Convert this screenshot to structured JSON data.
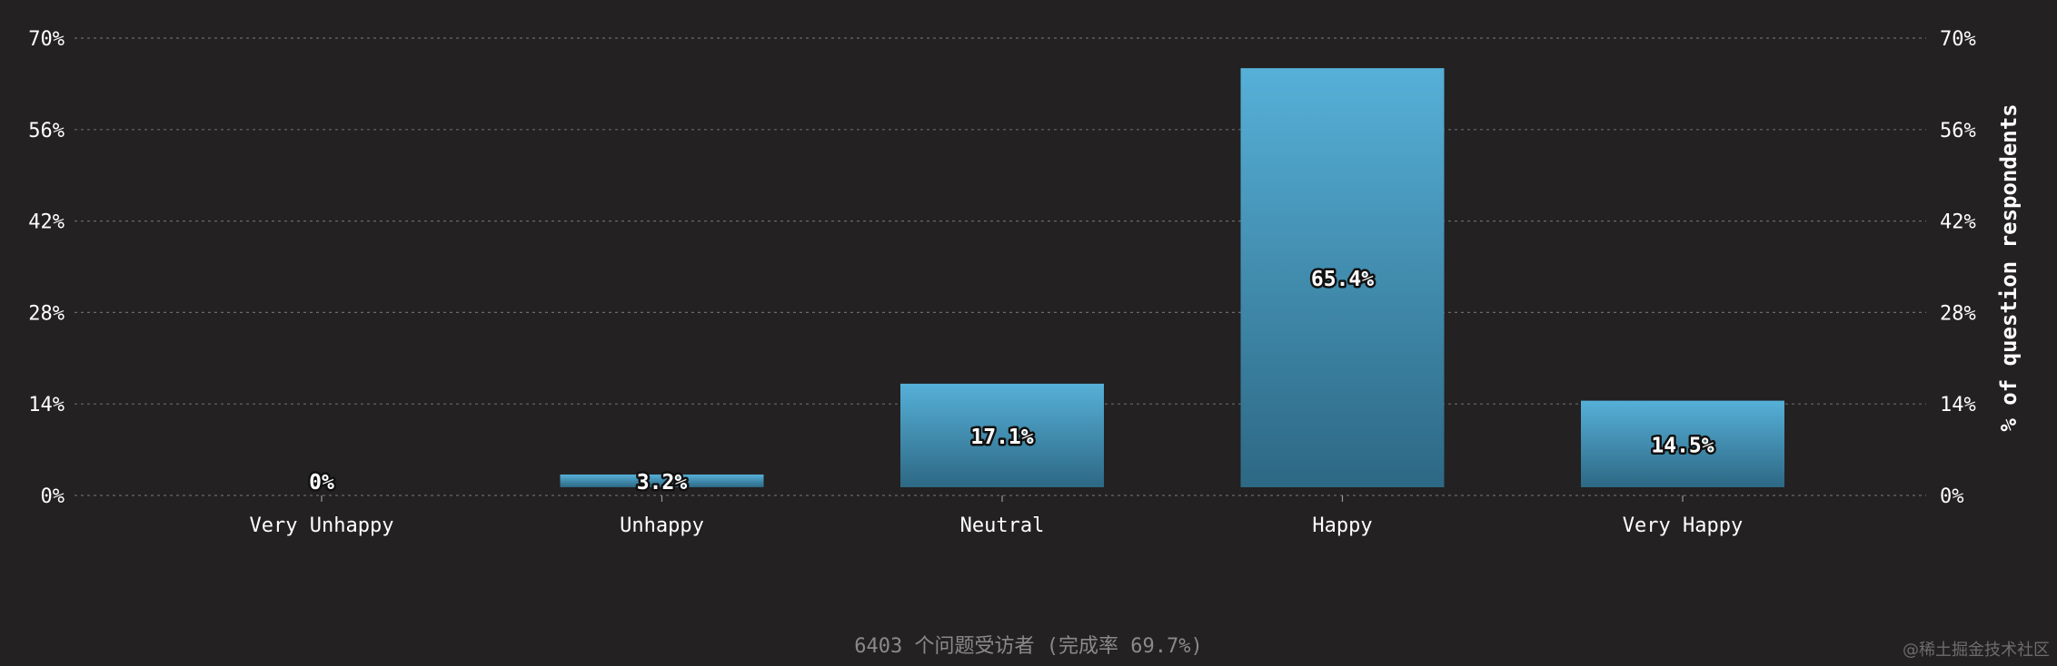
{
  "chart_data": {
    "type": "bar",
    "categories": [
      "Very Unhappy",
      "Unhappy",
      "Neutral",
      "Happy",
      "Very Happy"
    ],
    "values": [
      0,
      3.2,
      17.1,
      65.4,
      14.5
    ],
    "value_labels": [
      "0%",
      "3.2%",
      "17.1%",
      "65.4%",
      "14.5%"
    ],
    "yticks": [
      0,
      14,
      28,
      42,
      56,
      70
    ],
    "ytick_labels": [
      "0%",
      "14%",
      "28%",
      "42%",
      "56%",
      "70%"
    ],
    "ylim": [
      0,
      70
    ],
    "ylabel_right": "% of question respondents",
    "xlabel": "",
    "title": "",
    "grid": true,
    "colors": {
      "background": "#232122",
      "bar_top": "#56b0d8",
      "bar_bottom": "#2d6884",
      "grid": "#6a6a6a",
      "axis_text": "#ffffff"
    }
  },
  "footer": {
    "respondents": "6403 个问题受访者 (完成率 69.7%)"
  },
  "watermark": "@稀土掘金技术社区"
}
